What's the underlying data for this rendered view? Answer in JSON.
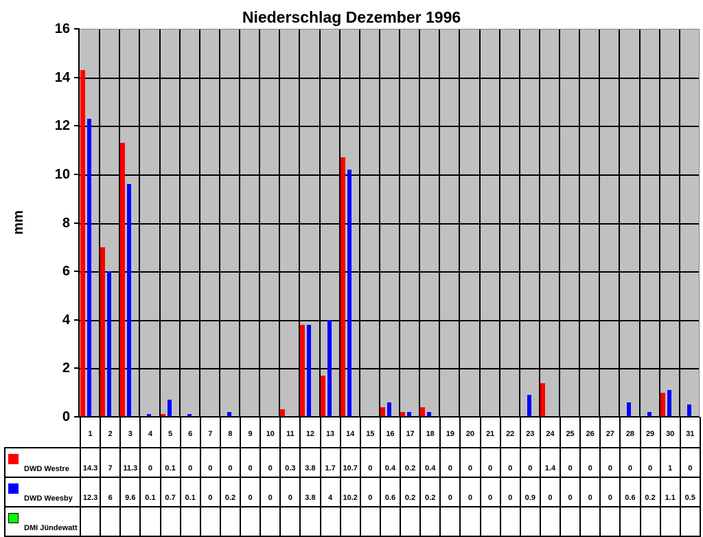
{
  "chart_data": {
    "type": "bar",
    "title": "Niederschlag Dezember 1996",
    "xlabel": "",
    "ylabel": "mm",
    "ylim": [
      0,
      16
    ],
    "yticks": [
      0,
      2,
      4,
      6,
      8,
      10,
      12,
      14,
      16
    ],
    "grid": {
      "horizontal": true,
      "vertical": true
    },
    "plot_background": "#c0c0c0",
    "legend_position": "data-table",
    "categories": [
      "1",
      "2",
      "3",
      "4",
      "5",
      "6",
      "7",
      "8",
      "9",
      "10",
      "11",
      "12",
      "13",
      "14",
      "15",
      "16",
      "17",
      "18",
      "19",
      "20",
      "21",
      "22",
      "23",
      "24",
      "25",
      "26",
      "27",
      "28",
      "29",
      "30",
      "31"
    ],
    "series": [
      {
        "name": "DWD Westre",
        "color": "#ff0000",
        "values": [
          14.3,
          7,
          11.3,
          0,
          0.1,
          0,
          0,
          0,
          0,
          0,
          0.3,
          3.8,
          1.7,
          10.7,
          0,
          0.4,
          0.2,
          0.4,
          0,
          0,
          0,
          0,
          0,
          1.4,
          0,
          0,
          0,
          0,
          0,
          1,
          0
        ]
      },
      {
        "name": "DWD Weesby",
        "color": "#0000ff",
        "values": [
          12.3,
          6,
          9.6,
          0.1,
          0.7,
          0.1,
          0,
          0.2,
          0,
          0,
          0,
          3.8,
          4,
          10.2,
          0,
          0.6,
          0.2,
          0.2,
          0,
          0,
          0,
          0,
          0.9,
          0,
          0,
          0,
          0,
          0.6,
          0.2,
          1.1,
          0.5
        ]
      },
      {
        "name": "DMI Jündewatt",
        "color": "#00ff00",
        "values": [
          null,
          null,
          null,
          null,
          null,
          null,
          null,
          null,
          null,
          null,
          null,
          null,
          null,
          null,
          null,
          null,
          null,
          null,
          null,
          null,
          null,
          null,
          null,
          null,
          null,
          null,
          null,
          null,
          null,
          null,
          null
        ]
      }
    ]
  },
  "display": {
    "westre": [
      "14.3",
      "7",
      "11.3",
      "0",
      "0.1",
      "0",
      "0",
      "0",
      "0",
      "0",
      "0.3",
      "3.8",
      "1.7",
      "10.7",
      "0",
      "0.4",
      "0.2",
      "0.4",
      "0",
      "0",
      "0",
      "0",
      "0",
      "1.4",
      "0",
      "0",
      "0",
      "0",
      "0",
      "1",
      "0"
    ],
    "weesby": [
      "12.3",
      "6",
      "9.6",
      "0.1",
      "0.7",
      "0.1",
      "0",
      "0.2",
      "0",
      "0",
      "0",
      "3.8",
      "4",
      "10.2",
      "0",
      "0.6",
      "0.2",
      "0.2",
      "0",
      "0",
      "0",
      "0",
      "0.9",
      "0",
      "0",
      "0",
      "0",
      "0.6",
      "0.2",
      "1.1",
      "0.5"
    ]
  }
}
